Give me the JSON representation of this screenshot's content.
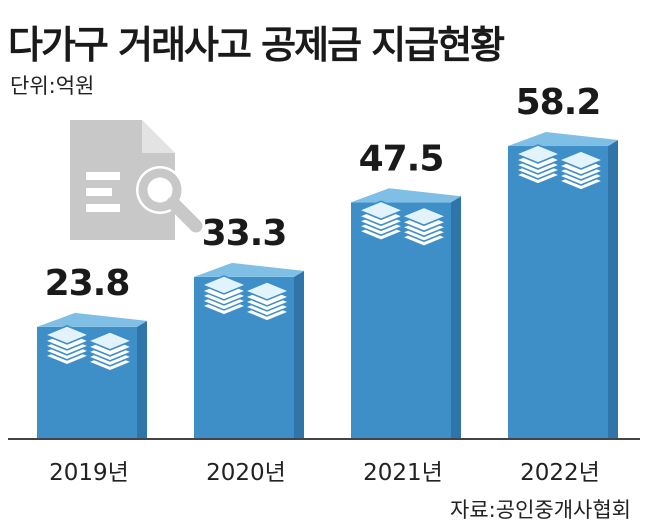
{
  "title": "다가구 거래사고 공제금 지급현황",
  "unit": "단위:억원",
  "source": "자료:공인중개사협회",
  "colors": {
    "bar_front": "#3e8fc8",
    "bar_side": "#2f75aa",
    "bar_top": "#7fbfe5",
    "stack_face": "#ffffff",
    "stack_line": "#3e8fc8",
    "icon_gray": "#c8c8c8",
    "axis": "#444444"
  },
  "decorative_icon": "document-search-icon",
  "chart_data": {
    "type": "bar",
    "categories": [
      "2019년",
      "2020년",
      "2021년",
      "2022년"
    ],
    "values": [
      23.8,
      33.3,
      47.5,
      58.2
    ],
    "value_labels": [
      "23.8",
      "33.3",
      "47.5",
      "58.2"
    ],
    "title": "다가구 거래사고 공제금 지급현황",
    "xlabel": "",
    "ylabel": "",
    "unit": "억원",
    "ylim": [
      0,
      70
    ],
    "grid": false,
    "legend": "none"
  }
}
